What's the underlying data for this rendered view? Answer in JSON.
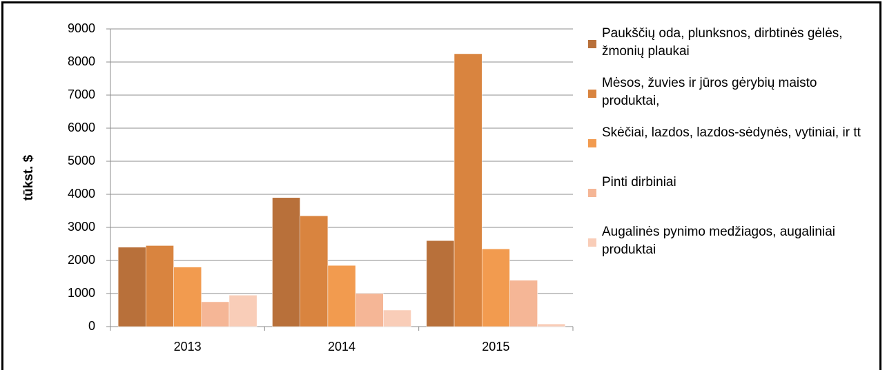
{
  "chart_data": {
    "type": "bar",
    "y_label": "tūkst. $",
    "categories": [
      "2013",
      "2014",
      "2015"
    ],
    "series": [
      {
        "name": "Paukščių oda, plunksnos, dirbtinės gėlės, žmonių plaukai",
        "color": "#b8703a",
        "values": [
          2400,
          3900,
          2600
        ]
      },
      {
        "name": "Mėsos, žuvies ir jūros gėrybių maisto produktai,",
        "color": "#d9843f",
        "values": [
          2450,
          3350,
          8250
        ]
      },
      {
        "name": "Skėčiai, lazdos, lazdos-sėdynės, vytiniai, ir tt",
        "color": "#f29b4f",
        "values": [
          1800,
          1850,
          2350
        ]
      },
      {
        "name": "Pinti dirbiniai",
        "color": "#f5b696",
        "values": [
          750,
          1000,
          1400
        ]
      },
      {
        "name": "Augalinės pynimo medžiagos, augaliniai produktai",
        "color": "#f9cdb8",
        "values": [
          950,
          500,
          80
        ]
      }
    ],
    "ylim": [
      0,
      9000
    ],
    "yticks": [
      0,
      1000,
      2000,
      3000,
      4000,
      5000,
      6000,
      7000,
      8000,
      9000
    ],
    "grid": true,
    "legend": "right"
  }
}
